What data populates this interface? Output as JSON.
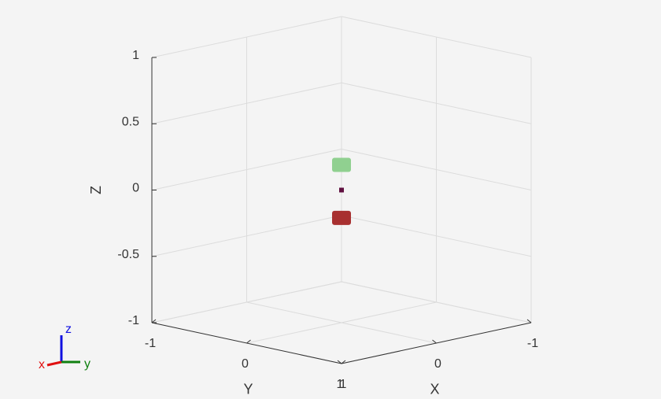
{
  "chart_data": {
    "type": "scatter3d",
    "xlabel": "X",
    "ylabel": "Y",
    "zlabel": "Z",
    "xlim": [
      -1,
      1
    ],
    "ylim": [
      -1,
      1
    ],
    "zlim": [
      -1,
      1
    ],
    "xticks": [
      -1,
      0,
      1
    ],
    "yticks": [
      -1,
      0,
      1
    ],
    "zticks": [
      -1,
      -0.5,
      0,
      0.5,
      1
    ],
    "grid": true,
    "series": [
      {
        "color": "#90d090",
        "x": [
          0
        ],
        "y": [
          0
        ],
        "z": [
          0.19
        ]
      },
      {
        "color": "#a83030",
        "x": [
          0
        ],
        "y": [
          0
        ],
        "z": [
          -0.21
        ]
      },
      {
        "color": "#601040",
        "x": [
          0
        ],
        "y": [
          0
        ],
        "z": [
          0
        ]
      }
    ],
    "triad_labels": {
      "x": "x",
      "y": "y",
      "z": "z"
    }
  }
}
